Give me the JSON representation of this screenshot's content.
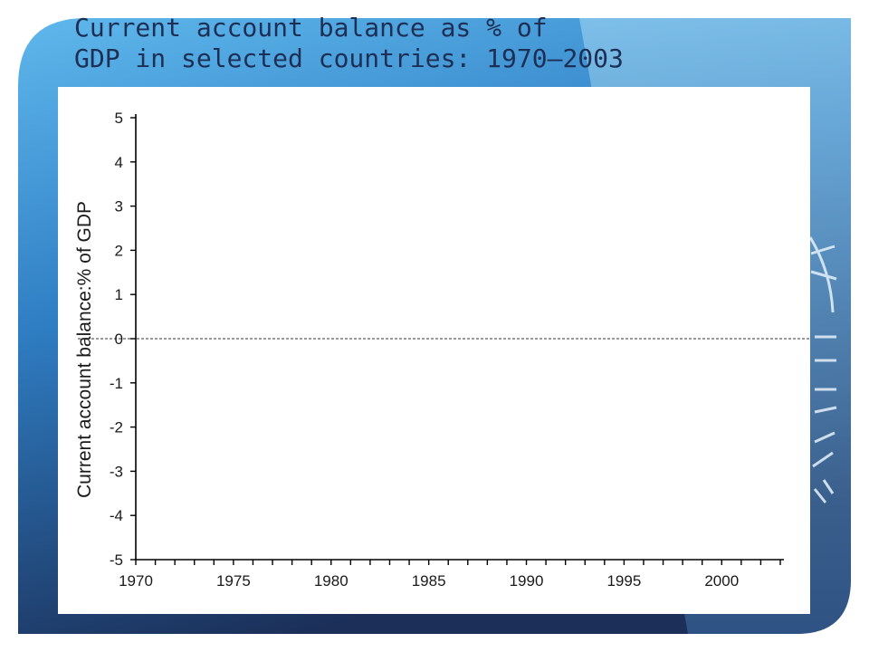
{
  "slide": {
    "title_line1": "Current account balance as % of",
    "title_line2": "GDP in selected countries: 1970–2003",
    "colors": {
      "gradient_light": "#9fd7f4",
      "gradient_mid": "#3a9bd9",
      "gradient_dark": "#1c3560",
      "title_text": "#1d2f55"
    }
  },
  "chart_data": {
    "type": "line",
    "title": "",
    "xlabel": "",
    "ylabel": "Current account balance:% of GDP",
    "xlim": [
      1970,
      2003
    ],
    "ylim": [
      -5,
      5
    ],
    "x_ticks": [
      1970,
      1975,
      1980,
      1985,
      1990,
      1995,
      2000
    ],
    "y_ticks": [
      5,
      4,
      3,
      2,
      1,
      0,
      -1,
      -2,
      -3,
      -4,
      -5
    ],
    "x_minor_step": 1,
    "reference_line": {
      "y": 0,
      "style": "dashed"
    },
    "series": [],
    "grid": false,
    "legend": "none"
  }
}
